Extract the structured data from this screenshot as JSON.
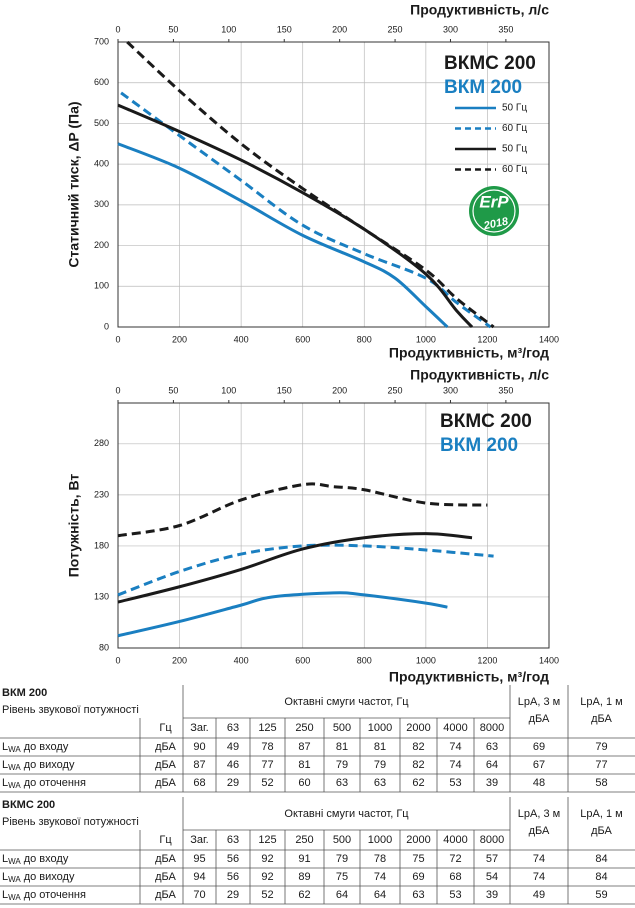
{
  "chart_data": [
    {
      "type": "line",
      "xlabel": "Продуктивність, м³/год",
      "x2label": "Продуктивність, л/с",
      "ylabel": "Статичний тиск, ΔP (Па)",
      "xlim": [
        0,
        1400
      ],
      "xticks": [
        0,
        200,
        400,
        600,
        800,
        1000,
        1200,
        1400
      ],
      "x2lim": [
        0,
        388.9
      ],
      "x2ticks": [
        0,
        50,
        100,
        150,
        200,
        250,
        300,
        350
      ],
      "ylim": [
        0,
        700
      ],
      "yticks": [
        0,
        100,
        200,
        300,
        400,
        500,
        600,
        700
      ],
      "grid": true,
      "legend": true,
      "labels": [
        {
          "text": "ВКМС 200",
          "color": "#1a1a1a"
        },
        {
          "text": "ВКМ 200",
          "color": "#1a7fc1"
        }
      ],
      "badge": {
        "text": "ErP",
        "year": "2018",
        "color": "#1f9a48"
      },
      "series": [
        {
          "name": "50 Гц",
          "color": "#1a7fc1",
          "dash": false,
          "x": [
            0,
            200,
            400,
            600,
            800,
            900,
            1000,
            1070
          ],
          "values": [
            450,
            390,
            310,
            225,
            160,
            120,
            50,
            0
          ]
        },
        {
          "name": "60 Гц",
          "color": "#1a7fc1",
          "dash": true,
          "x": [
            10,
            200,
            400,
            600,
            800,
            1000,
            1100,
            1210
          ],
          "values": [
            575,
            470,
            360,
            250,
            180,
            120,
            60,
            0
          ]
        },
        {
          "name": "50 Гц",
          "color": "#1a1a1a",
          "dash": false,
          "x": [
            0,
            200,
            400,
            600,
            800,
            1000,
            1100,
            1150
          ],
          "values": [
            545,
            480,
            410,
            330,
            240,
            130,
            40,
            0
          ]
        },
        {
          "name": "60 Гц",
          "color": "#1a1a1a",
          "dash": true,
          "x": [
            30,
            200,
            400,
            600,
            800,
            1000,
            1100,
            1220
          ],
          "values": [
            700,
            580,
            450,
            340,
            240,
            140,
            70,
            0
          ]
        }
      ]
    },
    {
      "type": "line",
      "xlabel": "Продуктивність, м³/год",
      "x2label": "Продуктивність, л/с",
      "ylabel": "Потужність, Вт",
      "xlim": [
        0,
        1400
      ],
      "xticks": [
        0,
        200,
        400,
        600,
        800,
        1000,
        1200,
        1400
      ],
      "x2lim": [
        0,
        388.9
      ],
      "x2ticks": [
        0,
        50,
        100,
        150,
        200,
        250,
        300,
        350
      ],
      "ylim": [
        80,
        320
      ],
      "yticks": [
        80,
        130,
        180,
        230,
        280
      ],
      "grid": true,
      "legend": false,
      "labels": [
        {
          "text": "ВКМС 200",
          "color": "#1a1a1a"
        },
        {
          "text": "ВКМ 200",
          "color": "#1a7fc1"
        }
      ],
      "series": [
        {
          "color": "#1a7fc1",
          "dash": false,
          "x": [
            0,
            200,
            400,
            500,
            700,
            800,
            1000,
            1070
          ],
          "values": [
            92,
            106,
            122,
            130,
            134,
            132,
            124,
            120
          ]
        },
        {
          "color": "#1a7fc1",
          "dash": true,
          "x": [
            0,
            200,
            400,
            600,
            800,
            1000,
            1220
          ],
          "values": [
            132,
            155,
            172,
            180,
            180,
            176,
            170
          ]
        },
        {
          "color": "#1a1a1a",
          "dash": false,
          "x": [
            0,
            200,
            400,
            600,
            800,
            1000,
            1150
          ],
          "values": [
            125,
            140,
            157,
            177,
            188,
            192,
            188
          ]
        },
        {
          "color": "#1a1a1a",
          "dash": true,
          "x": [
            0,
            200,
            400,
            600,
            700,
            800,
            1000,
            1200
          ],
          "values": [
            190,
            200,
            225,
            240,
            238,
            235,
            222,
            220
          ]
        }
      ]
    }
  ],
  "tables": [
    {
      "title": "ВКМ 200",
      "subtitle": "Рівень звукової потужності",
      "band_header": "Октавні смуги частот, Гц",
      "lpa3": [
        "LpA, 3 м",
        "дБА"
      ],
      "lpa1": [
        "LpA, 1 м",
        "дБА"
      ],
      "columns": [
        "Гц",
        "Заг.",
        63,
        125,
        250,
        500,
        1000,
        2000,
        4000,
        8000
      ],
      "rows": [
        {
          "sym": "L",
          "sub": "WA",
          "text": "до входу",
          "unit": "дБА",
          "values": [
            90,
            49,
            78,
            87,
            81,
            81,
            82,
            74,
            63,
            69,
            79
          ]
        },
        {
          "sym": "L",
          "sub": "WA",
          "text": "до виходу",
          "unit": "дБА",
          "values": [
            87,
            46,
            77,
            81,
            79,
            79,
            82,
            74,
            64,
            67,
            77
          ]
        },
        {
          "sym": "L",
          "sub": "WA",
          "text": "до оточення",
          "unit": "дБА",
          "values": [
            68,
            29,
            52,
            60,
            63,
            63,
            62,
            53,
            39,
            48,
            58
          ]
        }
      ]
    },
    {
      "title": "ВКМС 200",
      "subtitle": "Рівень звукової потужності",
      "band_header": "Октавні смуги частот, Гц",
      "lpa3": [
        "LpA, 3 м",
        "дБА"
      ],
      "lpa1": [
        "LpA, 1 м",
        "дБА"
      ],
      "columns": [
        "Гц",
        "Заг.",
        63,
        125,
        250,
        500,
        1000,
        2000,
        4000,
        8000
      ],
      "rows": [
        {
          "sym": "L",
          "sub": "WA",
          "text": "до входу",
          "unit": "дБА",
          "values": [
            95,
            56,
            92,
            91,
            79,
            78,
            75,
            72,
            57,
            74,
            84
          ]
        },
        {
          "sym": "L",
          "sub": "WA",
          "text": "до виходу",
          "unit": "дБА",
          "values": [
            94,
            56,
            92,
            89,
            75,
            74,
            69,
            68,
            54,
            74,
            84
          ]
        },
        {
          "sym": "L",
          "sub": "WA",
          "text": "до оточення",
          "unit": "дБА",
          "values": [
            70,
            29,
            52,
            62,
            64,
            64,
            63,
            53,
            39,
            49,
            59
          ]
        }
      ]
    }
  ]
}
